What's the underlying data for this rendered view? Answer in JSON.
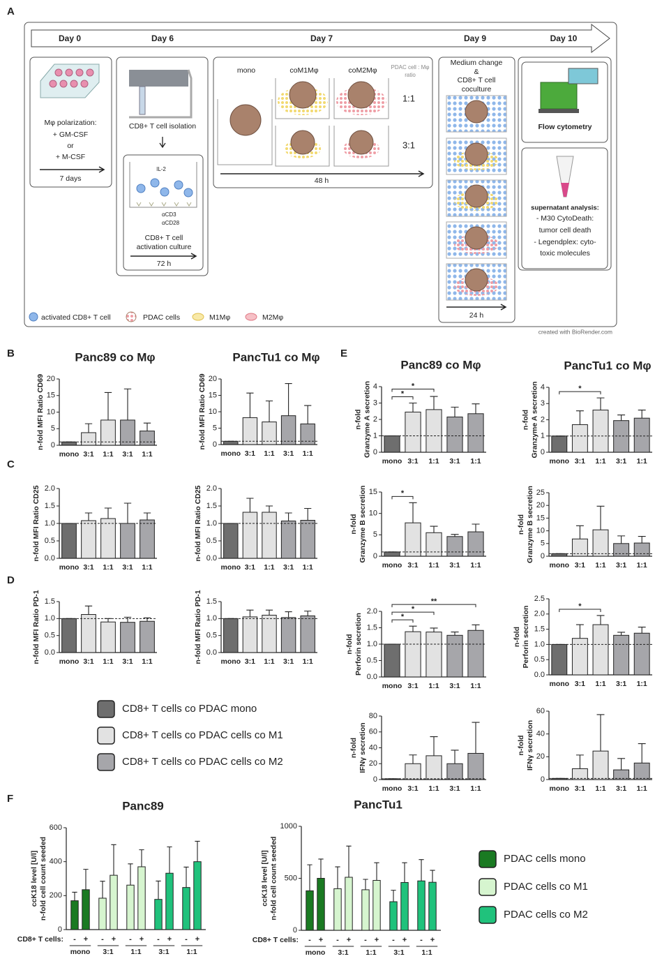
{
  "panel_labels": [
    "A",
    "B",
    "C",
    "D",
    "E",
    "F"
  ],
  "diagram": {
    "timeline": [
      "Day 0",
      "Day 6",
      "Day 7",
      "Day 9",
      "Day 10"
    ],
    "polarization": {
      "lines": [
        "Mφ polarization:",
        "+ GM-CSF",
        "or",
        "+ M-CSF"
      ],
      "duration": "7 days"
    },
    "isolation": {
      "title": "CD8+ T cell isolation",
      "il2": "IL-2",
      "cd3": "αCD3",
      "cd28": "αCD28",
      "culture": [
        "CD8+ T cell",
        "activation culture"
      ],
      "duration": "72 h"
    },
    "coculture": {
      "columns": [
        "mono",
        "coM1Mφ",
        "coM2Mφ"
      ],
      "ratio_header": [
        "PDAC cell : Mφ",
        "ratio"
      ],
      "ratios": [
        "1:1",
        "3:1"
      ],
      "duration": "48 h"
    },
    "medium": {
      "lines": [
        "Medium change",
        "&",
        "CD8+ T cell",
        "coculture"
      ],
      "duration": "24 h"
    },
    "flow": "Flow cytometry",
    "supernatant": {
      "title": "supernatant analysis:",
      "lines": [
        "- M30 CytoDeath:",
        "tumor cell death",
        "- Legendplex: cyto-",
        "toxic molecules"
      ]
    },
    "legend": [
      "activated CD8+ T cell",
      "PDAC cells",
      "M1Mφ",
      "M2Mφ"
    ],
    "credit": "created with BioRender.com"
  },
  "legend_cells": [
    {
      "name": "CD8+ T cells  co PDAC mono",
      "color": "#6e6e6e"
    },
    {
      "name": "CD8+ T cells co PDAC cells co M1",
      "color": "#e2e2e2"
    },
    {
      "name": "CD8+ T cells co PDAC cells co M2",
      "color": "#a6a6aa"
    }
  ],
  "legend_pdac": [
    {
      "name": "PDAC cells mono",
      "color": "#1a7a22"
    },
    {
      "name": "PDAC cells co M1",
      "color": "#d6f5cf"
    },
    {
      "name": "PDAC cells co M2",
      "color": "#20c27c"
    }
  ],
  "chart_data": [
    {
      "type": "bar",
      "title": "Panc89 co Mφ",
      "ylabel": [
        "n-fold MFI Ratio CD69"
      ],
      "categories": [
        "mono",
        "3:1",
        "1:1",
        "3:1",
        "1:1"
      ],
      "colors": [
        "#6e6e6e",
        "#e2e2e2",
        "#e2e2e2",
        "#a6a6aa",
        "#a6a6aa"
      ],
      "values": [
        1,
        3.8,
        7.6,
        7.6,
        4.3
      ],
      "errors": [
        0,
        2.7,
        8.3,
        9.4,
        2.4
      ],
      "hline": 1,
      "ylim": [
        0,
        20
      ],
      "yticks": [
        0,
        5,
        10,
        15,
        20
      ]
    },
    {
      "type": "bar",
      "title": "PancTu1 co Mφ",
      "ylabel": [
        "n-fold MFI Ratio CD69"
      ],
      "categories": [
        "mono",
        "3:1",
        "1:1",
        "3:1",
        "1:1"
      ],
      "colors": [
        "#6e6e6e",
        "#e2e2e2",
        "#e2e2e2",
        "#a6a6aa",
        "#a6a6aa"
      ],
      "values": [
        1,
        8.2,
        6.9,
        8.8,
        6.3
      ],
      "errors": [
        0,
        7.5,
        6.4,
        9.8,
        5.6
      ],
      "hline": 1,
      "ylim": [
        0,
        20
      ],
      "yticks": [
        0,
        5,
        10,
        15,
        20
      ]
    },
    {
      "type": "bar",
      "ylabel": [
        "n-fold MFI Ratio CD25"
      ],
      "categories": [
        "mono",
        "3:1",
        "1:1",
        "3:1",
        "1:1"
      ],
      "colors": [
        "#6e6e6e",
        "#e2e2e2",
        "#e2e2e2",
        "#a6a6aa",
        "#a6a6aa"
      ],
      "values": [
        1,
        1.08,
        1.14,
        1,
        1.1
      ],
      "errors": [
        0,
        0.22,
        0.3,
        0.58,
        0.2
      ],
      "hline": 1,
      "ylim": [
        0,
        2
      ],
      "yticks": [
        {
          "value": 0,
          "label": "0.0"
        },
        0.5,
        {
          "value": 1,
          "label": "1.0"
        },
        1.5,
        {
          "value": 2,
          "label": "2.0"
        }
      ]
    },
    {
      "type": "bar",
      "ylabel": [
        "n-fold MFI Ratio CD25"
      ],
      "categories": [
        "mono",
        "3:1",
        "1:1",
        "3:1",
        "1:1"
      ],
      "colors": [
        "#6e6e6e",
        "#e2e2e2",
        "#e2e2e2",
        "#a6a6aa",
        "#a6a6aa"
      ],
      "values": [
        1,
        1.32,
        1.32,
        1.07,
        1.09
      ],
      "errors": [
        0,
        0.4,
        0.18,
        0.23,
        0.34
      ],
      "hline": 1,
      "ylim": [
        0,
        2
      ],
      "yticks": [
        {
          "value": 0,
          "label": "0.0"
        },
        0.5,
        {
          "value": 1,
          "label": "1.0"
        },
        1.5,
        {
          "value": 2,
          "label": "2.0"
        }
      ]
    },
    {
      "type": "bar",
      "ylabel": [
        "n-fold MFI Ratio PD-1"
      ],
      "categories": [
        "mono",
        "3:1",
        "1:1",
        "3:1",
        "1:1"
      ],
      "colors": [
        "#6e6e6e",
        "#e2e2e2",
        "#e2e2e2",
        "#a6a6aa",
        "#a6a6aa"
      ],
      "values": [
        1,
        1.12,
        0.9,
        0.89,
        0.92
      ],
      "errors": [
        0,
        0.25,
        0.1,
        0.15,
        0.1
      ],
      "hline": 1,
      "ylim": [
        0,
        1.5
      ],
      "yticks": [
        {
          "value": 0,
          "label": "0.0"
        },
        0.5,
        {
          "value": 1,
          "label": "1.0"
        },
        1.5
      ]
    },
    {
      "type": "bar",
      "ylabel": [
        "n-fold MFI Ratio PD-1"
      ],
      "categories": [
        "mono",
        "3:1",
        "1:1",
        "3:1",
        "1:1"
      ],
      "colors": [
        "#6e6e6e",
        "#e2e2e2",
        "#e2e2e2",
        "#a6a6aa",
        "#a6a6aa"
      ],
      "values": [
        1,
        1.05,
        1.1,
        1.03,
        1.08
      ],
      "errors": [
        0,
        0.2,
        0.15,
        0.17,
        0.14
      ],
      "hline": 1,
      "ylim": [
        0,
        1.5
      ],
      "yticks": [
        {
          "value": 0,
          "label": "0.0"
        },
        0.5,
        {
          "value": 1,
          "label": "1.0"
        },
        1.5
      ]
    },
    {
      "type": "bar",
      "title": "Panc89 co Mφ",
      "ylabel": [
        "n-fold",
        "Granzyme A secretion"
      ],
      "categories": [
        "mono",
        "3:1",
        "1:1",
        "3:1",
        "1:1"
      ],
      "colors": [
        "#6e6e6e",
        "#e2e2e2",
        "#e2e2e2",
        "#a6a6aa",
        "#a6a6aa"
      ],
      "values": [
        1,
        2.45,
        2.6,
        2.15,
        2.35
      ],
      "errors": [
        0,
        0.55,
        0.8,
        0.6,
        0.6
      ],
      "hline": 1,
      "ylim": [
        0,
        4
      ],
      "yticks": [
        0,
        1,
        2,
        3,
        4
      ],
      "brackets": [
        {
          "from": 0,
          "to": 1,
          "label": "*"
        },
        {
          "from": 0,
          "to": 2,
          "label": "*"
        }
      ]
    },
    {
      "type": "bar",
      "title": "PancTu1 co Mφ",
      "ylabel": [
        "n-fold",
        "Granzyme A secretion"
      ],
      "categories": [
        "mono",
        "3:1",
        "1:1",
        "3:1",
        "1:1"
      ],
      "colors": [
        "#6e6e6e",
        "#e2e2e2",
        "#e2e2e2",
        "#a6a6aa",
        "#a6a6aa"
      ],
      "values": [
        1,
        1.7,
        2.6,
        1.95,
        2.1
      ],
      "errors": [
        0,
        0.85,
        0.75,
        0.35,
        0.5
      ],
      "hline": 1,
      "ylim": [
        0,
        4
      ],
      "yticks": [
        0,
        1,
        2,
        3,
        4
      ],
      "brackets": [
        {
          "from": 0,
          "to": 2,
          "label": "*"
        }
      ]
    },
    {
      "type": "bar",
      "ylabel": [
        "n-fold",
        "Granzyme B secretion"
      ],
      "categories": [
        "mono",
        "3:1",
        "1:1",
        "3:1",
        "1:1"
      ],
      "colors": [
        "#6e6e6e",
        "#e2e2e2",
        "#e2e2e2",
        "#a6a6aa",
        "#a6a6aa"
      ],
      "values": [
        1,
        7.8,
        5.5,
        4.6,
        5.7
      ],
      "errors": [
        0,
        4.7,
        1.5,
        0.5,
        1.8
      ],
      "hline": 1,
      "ylim": [
        0,
        15
      ],
      "yticks": [
        0,
        5,
        10,
        15
      ],
      "brackets": [
        {
          "from": 0,
          "to": 1,
          "label": "*"
        }
      ]
    },
    {
      "type": "bar",
      "ylabel": [
        "n-fold",
        "Granzyme B secretion"
      ],
      "categories": [
        "mono",
        "3:1",
        "1:1",
        "3:1",
        "1:1"
      ],
      "colors": [
        "#6e6e6e",
        "#e2e2e2",
        "#e2e2e2",
        "#a6a6aa",
        "#a6a6aa"
      ],
      "values": [
        1,
        6.8,
        10.4,
        5,
        5.2
      ],
      "errors": [
        0,
        5.2,
        9.3,
        3,
        2.6
      ],
      "hline": 1,
      "ylim": [
        0,
        25
      ],
      "yticks": [
        0,
        5,
        10,
        15,
        20,
        25
      ]
    },
    {
      "type": "bar",
      "ylabel": [
        "n-fold",
        "Perforin secretion"
      ],
      "categories": [
        "mono",
        "3:1",
        "1:1",
        "3:1",
        "1:1"
      ],
      "colors": [
        "#6e6e6e",
        "#e2e2e2",
        "#e2e2e2",
        "#a6a6aa",
        "#a6a6aa"
      ],
      "values": [
        1,
        1.38,
        1.37,
        1.27,
        1.42
      ],
      "errors": [
        0,
        0.17,
        0.12,
        0.1,
        0.17
      ],
      "hline": 1,
      "ylim": [
        0,
        2
      ],
      "yticks": [
        {
          "value": 0,
          "label": "0.0"
        },
        0.5,
        {
          "value": 1,
          "label": "1.0"
        },
        1.5,
        {
          "value": 2,
          "label": "2.0"
        }
      ],
      "brackets": [
        {
          "from": 0,
          "to": 1,
          "label": "*"
        },
        {
          "from": 0,
          "to": 2,
          "label": "*"
        },
        {
          "from": 0,
          "to": 4,
          "label": "**"
        }
      ]
    },
    {
      "type": "bar",
      "ylabel": [
        "n-fold",
        "Perforin secretion"
      ],
      "categories": [
        "mono",
        "3:1",
        "1:1",
        "3:1",
        "1:1"
      ],
      "colors": [
        "#6e6e6e",
        "#e2e2e2",
        "#e2e2e2",
        "#a6a6aa",
        "#a6a6aa"
      ],
      "values": [
        1,
        1.2,
        1.65,
        1.3,
        1.37
      ],
      "errors": [
        0,
        0.45,
        0.3,
        0.1,
        0.2
      ],
      "hline": 1,
      "ylim": [
        0,
        2.5
      ],
      "yticks": [
        {
          "value": 0,
          "label": "0.0"
        },
        0.5,
        {
          "value": 1,
          "label": "1.0"
        },
        1.5,
        {
          "value": 2,
          "label": "2.0"
        },
        2.5
      ],
      "brackets": [
        {
          "from": 0,
          "to": 2,
          "label": "*"
        }
      ]
    },
    {
      "type": "bar",
      "ylabel": [
        "n-fold",
        "IFNγ secretion"
      ],
      "categories": [
        "mono",
        "3:1",
        "1:1",
        "3:1",
        "1:1"
      ],
      "colors": [
        "#6e6e6e",
        "#e2e2e2",
        "#e2e2e2",
        "#a6a6aa",
        "#a6a6aa"
      ],
      "values": [
        1,
        20,
        30,
        20,
        33
      ],
      "errors": [
        0,
        11,
        24,
        17,
        39
      ],
      "hline": 1,
      "ylim": [
        0,
        80
      ],
      "yticks": [
        0,
        20,
        40,
        60,
        80
      ]
    },
    {
      "type": "bar",
      "ylabel": [
        "n-fold",
        "IFNγ secretion"
      ],
      "categories": [
        "mono",
        "3:1",
        "1:1",
        "3:1",
        "1:1"
      ],
      "colors": [
        "#6e6e6e",
        "#e2e2e2",
        "#e2e2e2",
        "#a6a6aa",
        "#a6a6aa"
      ],
      "values": [
        1,
        9.5,
        25,
        8.5,
        14.5
      ],
      "errors": [
        0,
        12,
        32,
        10,
        17
      ],
      "hline": 1,
      "ylim": [
        0,
        60
      ],
      "yticks": [
        0,
        20,
        40,
        60
      ]
    },
    {
      "type": "grouped_bar",
      "title": "Panc89",
      "ylabel": [
        "ccK18 level [U/l]",
        "n-fold cell count seeded"
      ],
      "x_label": "CD8+ T cells:",
      "categories": [
        "mono",
        "3:1",
        "1:1",
        "3:1",
        "1:1"
      ],
      "colors": [
        "#1a7a22",
        "#d6f5cf",
        "#d6f5cf",
        "#20c27c",
        "#20c27c"
      ],
      "series": [
        {
          "name": "-",
          "values": [
            170,
            185,
            262,
            178,
            248
          ],
          "errors": [
            50,
            100,
            125,
            108,
            120
          ]
        },
        {
          "name": "+",
          "values": [
            235,
            320,
            370,
            332,
            400
          ],
          "errors": [
            120,
            180,
            100,
            155,
            120
          ]
        }
      ],
      "ylim": [
        0,
        600
      ],
      "yticks": [
        0,
        200,
        400,
        600
      ]
    },
    {
      "type": "grouped_bar",
      "title": "PancTu1",
      "ylabel": [
        "ccK18 level [U/l]",
        "n-fold cell count seeded"
      ],
      "x_label": "CD8+ T cells:",
      "categories": [
        "mono",
        "3:1",
        "1:1",
        "3:1",
        "1:1"
      ],
      "colors": [
        "#1a7a22",
        "#d6f5cf",
        "#d6f5cf",
        "#20c27c",
        "#20c27c"
      ],
      "series": [
        {
          "name": "-",
          "values": [
            380,
            400,
            390,
            275,
            475
          ],
          "errors": [
            250,
            210,
            100,
            110,
            205
          ]
        },
        {
          "name": "+",
          "values": [
            500,
            510,
            480,
            460,
            462
          ],
          "errors": [
            185,
            300,
            170,
            190,
            115
          ]
        }
      ],
      "ylim": [
        0,
        1000
      ],
      "yticks": [
        0,
        500,
        1000
      ]
    }
  ]
}
